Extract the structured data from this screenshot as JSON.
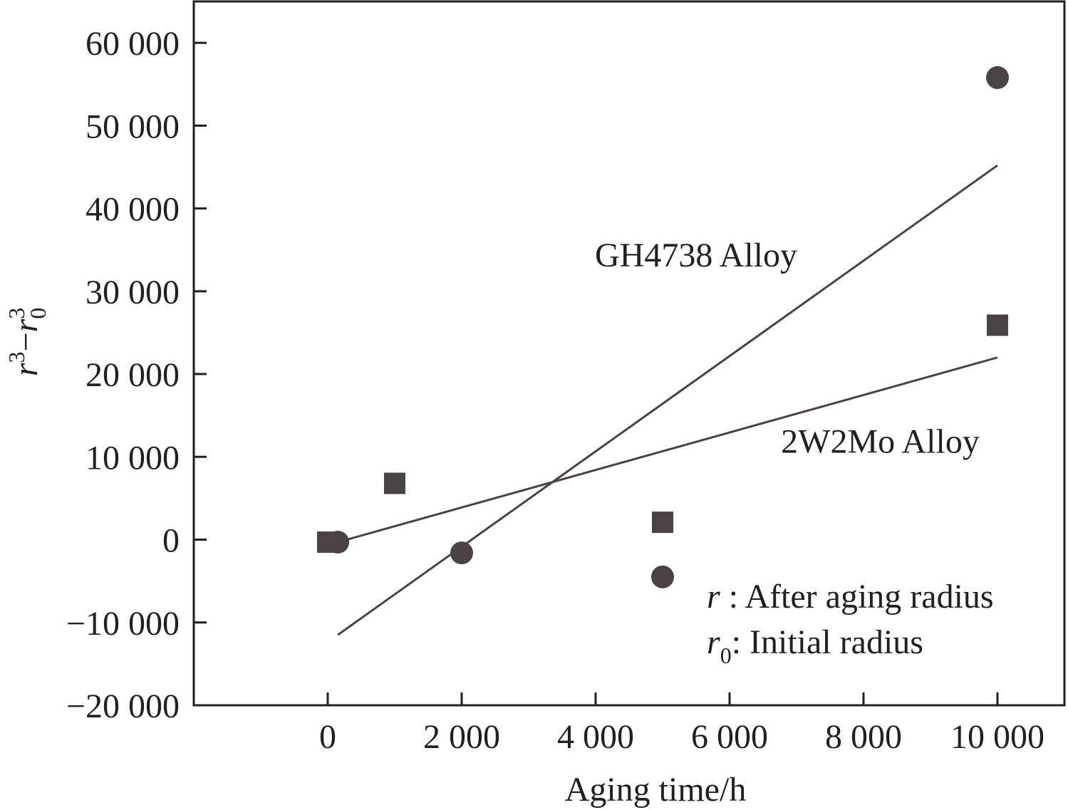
{
  "chart_data": {
    "type": "scatter",
    "xlabel": "Aging time/h",
    "ylabel": {
      "base": "r",
      "sup1": "3",
      "minus": "−",
      "base2": "r",
      "sub": "0",
      "sup2": "3"
    },
    "xlim": [
      -2000,
      11000
    ],
    "ylim": [
      -20000,
      65000
    ],
    "x_ticks": [
      0,
      2000,
      4000,
      6000,
      8000,
      10000
    ],
    "x_tick_labels": [
      "0",
      "2 000",
      "4 000",
      "6 000",
      "8 000",
      "10 000"
    ],
    "y_ticks": [
      -20000,
      -10000,
      0,
      10000,
      20000,
      30000,
      40000,
      50000,
      60000
    ],
    "y_tick_labels": [
      "−20 000",
      "−10 000",
      "0",
      "10 000",
      "20 000",
      "30 000",
      "40 000",
      "50 000",
      "60 000"
    ],
    "grid": false,
    "colors": {
      "marker": "#4a4244",
      "line": "#4a4244",
      "axis": "#231f20"
    },
    "series": [
      {
        "label": "GH4738 Alloy",
        "marker": "circle",
        "points": [
          {
            "x": 150,
            "y": -300
          },
          {
            "x": 2000,
            "y": -1600
          },
          {
            "x": 5000,
            "y": -4500
          },
          {
            "x": 10000,
            "y": 55800
          }
        ],
        "fit": [
          {
            "x": 150,
            "y": -11500
          },
          {
            "x": 10000,
            "y": 45200
          }
        ],
        "label_at": {
          "x": 5500,
          "y": 33000
        }
      },
      {
        "label": "2W2Mo Alloy",
        "marker": "square",
        "points": [
          {
            "x": 0,
            "y": -300
          },
          {
            "x": 1000,
            "y": 6800
          },
          {
            "x": 5000,
            "y": 2100
          },
          {
            "x": 10000,
            "y": 25900
          }
        ],
        "fit": [
          {
            "x": 150,
            "y": -300
          },
          {
            "x": 10000,
            "y": 22000
          }
        ],
        "label_at": {
          "x": 8250,
          "y": 10500
        }
      }
    ],
    "notes": [
      {
        "symbol": "r",
        "sub": "",
        "text": " : After aging radius"
      },
      {
        "symbol": "r",
        "sub": "0",
        "text": ": Initial radius"
      }
    ]
  }
}
